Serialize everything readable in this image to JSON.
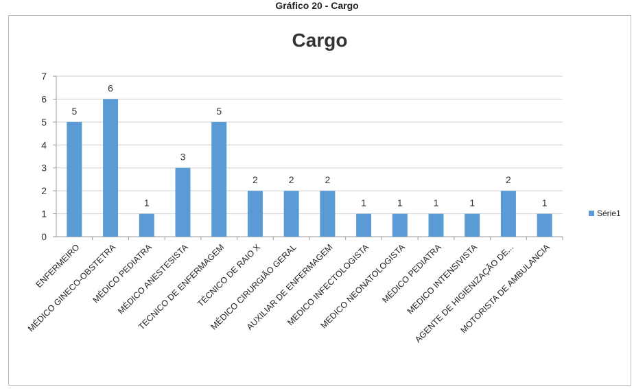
{
  "caption": "Gráfico 20 - Cargo",
  "chart_data": {
    "type": "bar",
    "title": "Cargo",
    "xlabel": "",
    "ylabel": "",
    "ylim": [
      0,
      7
    ],
    "yticks": [
      0,
      1,
      2,
      3,
      4,
      5,
      6,
      7
    ],
    "grid": true,
    "legend_position": "right",
    "categories": [
      "ENFERMEIRO",
      "MÉDICO GINECO-OBSTETRA",
      "MÉDICO PEDIATRA",
      "MÉDICO ANESTESISTA",
      "TECNICO DE ENFERMAGEM",
      "TÉCNICO DE RAIO X",
      "MÉDICO CIRURGIÃO GERAL",
      "AUXILIAR DE ENFERMAGEM",
      "MEDICO INFECTOLOGISTA",
      "MEDICO NEONATOLOGISTA",
      "MÉDICO PEDIATRA",
      "MEDICO INTENSIVISTA",
      "AGENTE DE HIGIENIZAÇÃO DE...",
      "MOTORISTA DE AMBULANCIA"
    ],
    "series": [
      {
        "name": "Série1",
        "values": [
          5,
          6,
          1,
          3,
          5,
          2,
          2,
          2,
          1,
          1,
          1,
          1,
          2,
          1
        ]
      }
    ],
    "colors": {
      "bar": "#5b9bd5",
      "grid": "#d0d0d0",
      "axis": "#9a9a9a"
    }
  }
}
